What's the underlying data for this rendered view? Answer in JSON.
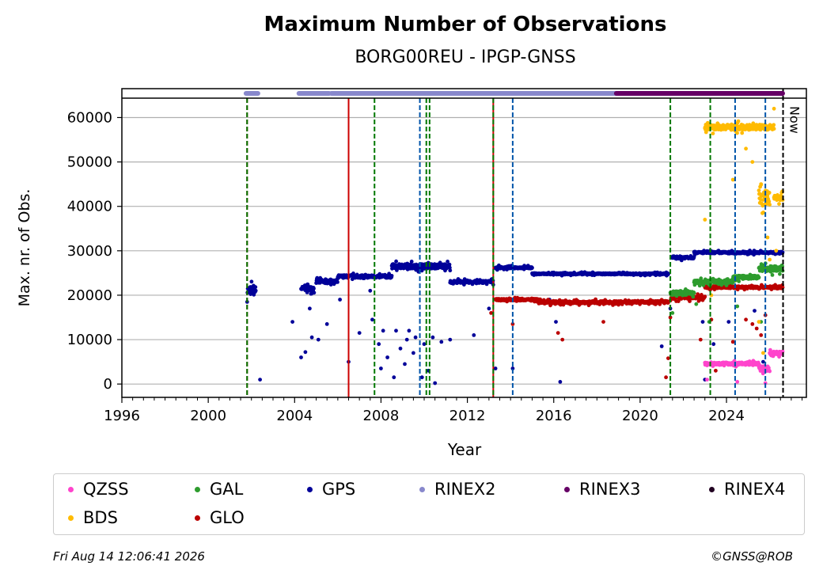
{
  "header": {
    "title": "Maximum Number of Observations",
    "subtitle": "BORG00REU - IPGP-GNSS"
  },
  "footer": {
    "timestamp": "Fri Aug 14 12:06:41 2026",
    "copyright": "©GNSS@ROB"
  },
  "chart_data": {
    "type": "scatter",
    "title": "Maximum Number of Observations",
    "subtitle": "BORG00REU - IPGP-GNSS",
    "xlabel": "Year",
    "ylabel": "Max. nr. of Obs.",
    "xlim": [
      1996,
      2027.7
    ],
    "ylim": [
      -3000,
      66500
    ],
    "x_ticks": [
      "1996",
      "2000",
      "2004",
      "2008",
      "2012",
      "2016",
      "2020",
      "2024"
    ],
    "y_ticks": [
      "0",
      "10000",
      "20000",
      "30000",
      "40000",
      "50000",
      "60000"
    ],
    "grid": "horizontal",
    "now_label": "Now",
    "now_x": 2026.62,
    "legend": {
      "placement": "bottom",
      "entries": [
        "QZSS",
        "GAL",
        "GPS",
        "RINEX2",
        "RINEX3",
        "RINEX4",
        "BDS",
        "GLO"
      ]
    },
    "colors": {
      "QZSS": "#ff44cc",
      "GAL": "#2e9c2e",
      "GPS": "#000099",
      "RINEX2": "#8888cc",
      "RINEX3": "#660066",
      "RINEX4": "#220022",
      "BDS": "#ffbb00",
      "GLO": "#bb0000",
      "event_red": "#cc0000",
      "event_green": "#007700",
      "event_blue": "#0055aa"
    },
    "event_lines": [
      {
        "x": 2001.8,
        "color": "red",
        "style": "dashed"
      },
      {
        "x": 2001.8,
        "color": "green",
        "style": "dashed"
      },
      {
        "x": 2006.5,
        "color": "red",
        "style": "solid"
      },
      {
        "x": 2007.7,
        "color": "green",
        "style": "dashed"
      },
      {
        "x": 2009.8,
        "color": "blue",
        "style": "dashed"
      },
      {
        "x": 2010.1,
        "color": "green",
        "style": "dashed"
      },
      {
        "x": 2010.25,
        "color": "green",
        "style": "dashed"
      },
      {
        "x": 2013.2,
        "color": "red",
        "style": "solid"
      },
      {
        "x": 2013.2,
        "color": "green",
        "style": "dashed"
      },
      {
        "x": 2014.1,
        "color": "blue",
        "style": "dashed"
      },
      {
        "x": 2021.4,
        "color": "green",
        "style": "dashed"
      },
      {
        "x": 2023.25,
        "color": "green",
        "style": "dashed"
      },
      {
        "x": 2024.4,
        "color": "blue",
        "style": "dashed"
      },
      {
        "x": 2025.8,
        "color": "blue",
        "style": "dashed"
      }
    ],
    "rinex_bars": [
      {
        "name": "RINEX2",
        "start": 2001.75,
        "end": 2002.3
      },
      {
        "name": "RINEX2",
        "start": 2004.2,
        "end": 2005.6
      },
      {
        "name": "RINEX2",
        "start": 2005.7,
        "end": 2018.9
      },
      {
        "name": "RINEX3",
        "start": 2018.9,
        "end": 2026.6
      }
    ],
    "series": [
      {
        "name": "GPS",
        "segments": [
          {
            "x0": 2001.8,
            "x1": 2002.2,
            "y": 21000,
            "jitter": 2500
          },
          {
            "x0": 2004.3,
            "x1": 2004.9,
            "y": 21500,
            "jitter": 1200
          },
          {
            "x0": 2005.0,
            "x1": 2006.0,
            "y": 23000,
            "jitter": 900
          },
          {
            "x0": 2006.0,
            "x1": 2008.5,
            "y": 24200,
            "jitter": 800
          },
          {
            "x0": 2008.5,
            "x1": 2011.2,
            "y": 26500,
            "jitter": 1300
          },
          {
            "x0": 2011.2,
            "x1": 2013.2,
            "y": 23000,
            "jitter": 700
          },
          {
            "x0": 2013.3,
            "x1": 2015.0,
            "y": 26200,
            "jitter": 500
          },
          {
            "x0": 2015.0,
            "x1": 2021.3,
            "y": 24800,
            "jitter": 400
          },
          {
            "x0": 2021.5,
            "x1": 2022.5,
            "y": 28500,
            "jitter": 700
          },
          {
            "x0": 2022.5,
            "x1": 2026.6,
            "y": 29600,
            "jitter": 500
          }
        ],
        "outliers": [
          [
            2002.4,
            1000
          ],
          [
            2003.9,
            14000
          ],
          [
            2004.3,
            6000
          ],
          [
            2004.5,
            7200
          ],
          [
            2004.7,
            17000
          ],
          [
            2004.8,
            10500
          ],
          [
            2005.1,
            10000
          ],
          [
            2005.5,
            13500
          ],
          [
            2006.5,
            5000
          ],
          [
            2006.1,
            19000
          ],
          [
            2007.0,
            11500
          ],
          [
            2007.5,
            21000
          ],
          [
            2007.6,
            14500
          ],
          [
            2007.9,
            9000
          ],
          [
            2008.0,
            3500
          ],
          [
            2008.1,
            12000
          ],
          [
            2008.3,
            6000
          ],
          [
            2008.6,
            1500
          ],
          [
            2008.7,
            12000
          ],
          [
            2008.9,
            8000
          ],
          [
            2009.1,
            4500
          ],
          [
            2009.2,
            10000
          ],
          [
            2009.3,
            12000
          ],
          [
            2009.5,
            7000
          ],
          [
            2009.6,
            10500
          ],
          [
            2009.9,
            1500
          ],
          [
            2010.0,
            9000
          ],
          [
            2010.2,
            3000
          ],
          [
            2010.4,
            10500
          ],
          [
            2010.5,
            200
          ],
          [
            2010.8,
            9500
          ],
          [
            2011.2,
            10000
          ],
          [
            2012.3,
            11000
          ],
          [
            2013.0,
            17000
          ],
          [
            2013.3,
            3500
          ],
          [
            2014.1,
            3500
          ],
          [
            2015.8,
            19000
          ],
          [
            2016.1,
            14000
          ],
          [
            2016.3,
            500
          ],
          [
            2021.0,
            8500
          ],
          [
            2021.4,
            17000
          ],
          [
            2022.9,
            14000
          ],
          [
            2023.0,
            1000
          ],
          [
            2023.4,
            9000
          ],
          [
            2024.1,
            14000
          ],
          [
            2025.3,
            16500
          ],
          [
            2025.7,
            5000
          ]
        ]
      },
      {
        "name": "GLO",
        "segments": [
          {
            "x0": 2013.3,
            "x1": 2015.3,
            "y": 19000,
            "jitter": 500
          },
          {
            "x0": 2015.3,
            "x1": 2019.5,
            "y": 18400,
            "jitter": 700
          },
          {
            "x0": 2019.5,
            "x1": 2021.3,
            "y": 18500,
            "jitter": 600
          },
          {
            "x0": 2021.4,
            "x1": 2023.0,
            "y": 19500,
            "jitter": 900
          },
          {
            "x0": 2023.0,
            "x1": 2026.6,
            "y": 21800,
            "jitter": 600
          }
        ],
        "outliers": [
          [
            2013.1,
            16000
          ],
          [
            2014.1,
            13500
          ],
          [
            2016.2,
            11500
          ],
          [
            2016.4,
            10000
          ],
          [
            2018.3,
            14000
          ],
          [
            2021.2,
            1500
          ],
          [
            2021.3,
            5800
          ],
          [
            2021.4,
            15000
          ],
          [
            2022.8,
            10000
          ],
          [
            2023.3,
            14500
          ],
          [
            2023.5,
            3000
          ],
          [
            2024.3,
            9500
          ],
          [
            2024.9,
            14500
          ],
          [
            2025.2,
            13500
          ],
          [
            2025.4,
            12500
          ],
          [
            2025.6,
            11000
          ],
          [
            2025.8,
            15500
          ]
        ]
      },
      {
        "name": "GAL",
        "segments": [
          {
            "x0": 2021.4,
            "x1": 2022.5,
            "y": 20500,
            "jitter": 1200
          },
          {
            "x0": 2022.5,
            "x1": 2024.3,
            "y": 23000,
            "jitter": 900
          },
          {
            "x0": 2024.3,
            "x1": 2025.5,
            "y": 24000,
            "jitter": 1000
          },
          {
            "x0": 2025.5,
            "x1": 2026.6,
            "y": 26000,
            "jitter": 1500
          }
        ],
        "outliers": [
          [
            2021.5,
            16000
          ],
          [
            2022.6,
            18000
          ],
          [
            2023.2,
            14000
          ],
          [
            2024.5,
            17500
          ],
          [
            2025.6,
            14000
          ]
        ]
      },
      {
        "name": "BDS",
        "segments": [
          {
            "x0": 2023.0,
            "x1": 2026.2,
            "y": 57800,
            "jitter": 1500
          },
          {
            "x0": 2025.5,
            "x1": 2026.0,
            "y": 42000,
            "jitter": 4000
          },
          {
            "x0": 2026.2,
            "x1": 2026.6,
            "y": 42000,
            "jitter": 1500
          }
        ],
        "outliers": [
          [
            2023.0,
            37000
          ],
          [
            2023.3,
            20000
          ],
          [
            2024.3,
            46000
          ],
          [
            2024.9,
            53000
          ],
          [
            2025.2,
            50000
          ],
          [
            2025.5,
            14000
          ],
          [
            2025.6,
            45000
          ],
          [
            2025.7,
            7000
          ],
          [
            2025.9,
            33000
          ],
          [
            2026.0,
            28000
          ],
          [
            2026.2,
            62000
          ],
          [
            2026.3,
            30000
          ]
        ]
      },
      {
        "name": "QZSS",
        "segments": [
          {
            "x0": 2023.0,
            "x1": 2025.5,
            "y": 4600,
            "jitter": 700
          },
          {
            "x0": 2025.5,
            "x1": 2026.0,
            "y": 3500,
            "jitter": 1500
          },
          {
            "x0": 2026.0,
            "x1": 2026.6,
            "y": 7000,
            "jitter": 1000
          }
        ],
        "outliers": [
          [
            2023.1,
            1000
          ],
          [
            2024.5,
            500
          ],
          [
            2025.8,
            200
          ]
        ]
      }
    ]
  }
}
